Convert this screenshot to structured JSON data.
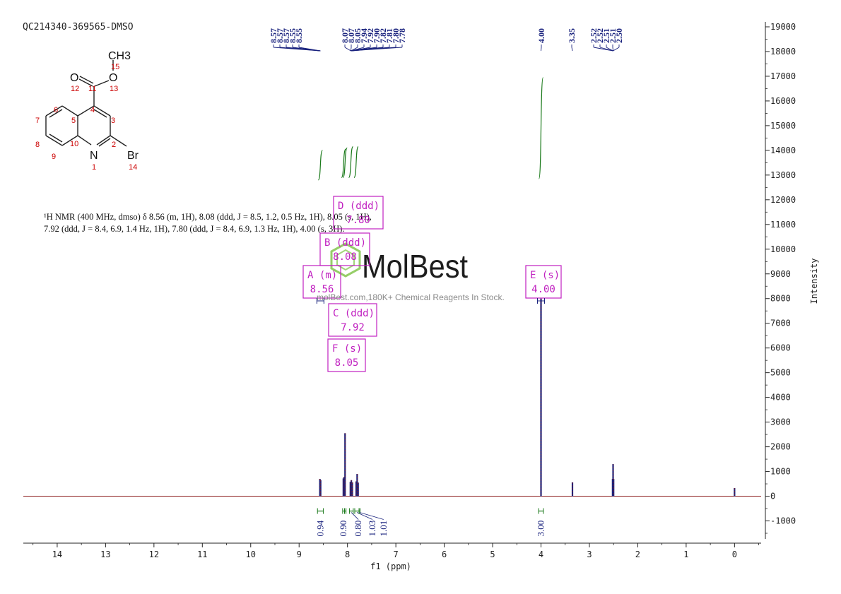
{
  "sample_id": "QC214340-369565-DMSO",
  "nmr_description": {
    "line1": "¹H NMR (400 MHz, dmso) δ 8.56 (m, 1H), 8.08 (ddd, J = 8.5, 1.2, 0.5 Hz, 1H), 8.05 (s, 1H),",
    "line2": "7.92 (ddd, J = 8.4, 6.9, 1.4 Hz, 1H), 7.80 (ddd, J = 8.4, 6.9, 1.3 Hz, 1H), 4.00 (s, 3H)."
  },
  "watermark": {
    "brand": "MolBest",
    "tagline": "molBest.com,180K+ Chemical Reagents In Stock."
  },
  "structure": {
    "atoms": [
      "CH3",
      "O",
      "O",
      "N",
      "Br"
    ],
    "numbers": [
      "15",
      "12",
      "11",
      "13",
      "6",
      "4",
      "3",
      "7",
      "5",
      "2",
      "8",
      "10",
      "9",
      "1",
      "14"
    ]
  },
  "colors": {
    "spectrum": "#8b1a1a",
    "peak_fill": "#1a237e",
    "integral": "#1b7a1b",
    "multiplet_box": "#c020c0",
    "peak_label": "#1a237e",
    "axis": "#222222",
    "atom_number": "#cc0000",
    "brand": "#7cc242"
  },
  "chart_data": {
    "type": "line",
    "xlabel": "f1 (ppm)",
    "ylabel": "Intensity",
    "xlim": [
      14.7,
      -0.55
    ],
    "ylim": [
      -1900,
      19200
    ],
    "x_ticks": [
      "14",
      "13",
      "12",
      "11",
      "10",
      "9",
      "8",
      "7",
      "6",
      "5",
      "4",
      "3",
      "2",
      "1",
      "0"
    ],
    "y_ticks": [
      "19000",
      "18000",
      "17000",
      "16000",
      "15000",
      "14000",
      "13000",
      "12000",
      "11000",
      "10000",
      "9000",
      "8000",
      "7000",
      "6000",
      "5000",
      "4000",
      "3000",
      "2000",
      "1000",
      "0",
      "-1000"
    ],
    "peaks": [
      {
        "ppm": 8.57,
        "height": 700
      },
      {
        "ppm": 8.555,
        "height": 650
      },
      {
        "ppm": 8.085,
        "height": 720
      },
      {
        "ppm": 8.07,
        "height": 780
      },
      {
        "ppm": 8.05,
        "height": 2550
      },
      {
        "ppm": 7.94,
        "height": 580
      },
      {
        "ppm": 7.92,
        "height": 650
      },
      {
        "ppm": 7.9,
        "height": 560
      },
      {
        "ppm": 7.82,
        "height": 600
      },
      {
        "ppm": 7.8,
        "height": 900
      },
      {
        "ppm": 7.78,
        "height": 550
      },
      {
        "ppm": 4.0,
        "height": 8000
      },
      {
        "ppm": 3.35,
        "height": 560
      },
      {
        "ppm": 2.52,
        "height": 700
      },
      {
        "ppm": 2.51,
        "height": 1300
      },
      {
        "ppm": 2.5,
        "height": 700
      },
      {
        "ppm": 0.0,
        "height": 330
      }
    ],
    "peak_label_groups": [
      {
        "labels": [
          "8.57",
          "8.57",
          "8.57",
          "8.55",
          "8.55"
        ],
        "target": 8.56
      },
      {
        "labels": [
          "8.07",
          "8.07",
          "8.05",
          "7.94",
          "7.92",
          "7.90",
          "7.82",
          "7.81",
          "7.80",
          "7.78"
        ],
        "target": 7.93
      },
      {
        "labels": [
          "4.00"
        ],
        "target": 4.0
      },
      {
        "labels": [
          "3.35"
        ],
        "target": 3.35
      },
      {
        "labels": [
          "2.52",
          "2.52",
          "2.51",
          "2.51",
          "2.50"
        ],
        "target": 2.51
      }
    ],
    "multiplets": [
      {
        "letter": "A",
        "type": "(m)",
        "shift": "8.56"
      },
      {
        "letter": "B",
        "type": "(ddd)",
        "shift": "8.08"
      },
      {
        "letter": "C",
        "type": "(ddd)",
        "shift": "7.92"
      },
      {
        "letter": "D",
        "type": "(ddd)",
        "shift": "7.80"
      },
      {
        "letter": "E",
        "type": "(s)",
        "shift": "4.00"
      },
      {
        "letter": "F",
        "type": "(s)",
        "shift": "8.05"
      }
    ],
    "integrals": [
      {
        "from": 8.62,
        "to": 8.5,
        "value": "0.94"
      },
      {
        "from": 8.1,
        "to": 8.06,
        "value": "0.90"
      },
      {
        "from": 8.06,
        "to": 8.03,
        "value": ""
      },
      {
        "from": 7.96,
        "to": 7.88,
        "value": "0.80"
      },
      {
        "from": 7.85,
        "to": 7.76,
        "value": "1.03"
      },
      {
        "from": 7.76,
        "to": 7.74,
        "value": "1.01"
      },
      {
        "from": 4.05,
        "to": 3.95,
        "value": "3.00"
      }
    ]
  }
}
